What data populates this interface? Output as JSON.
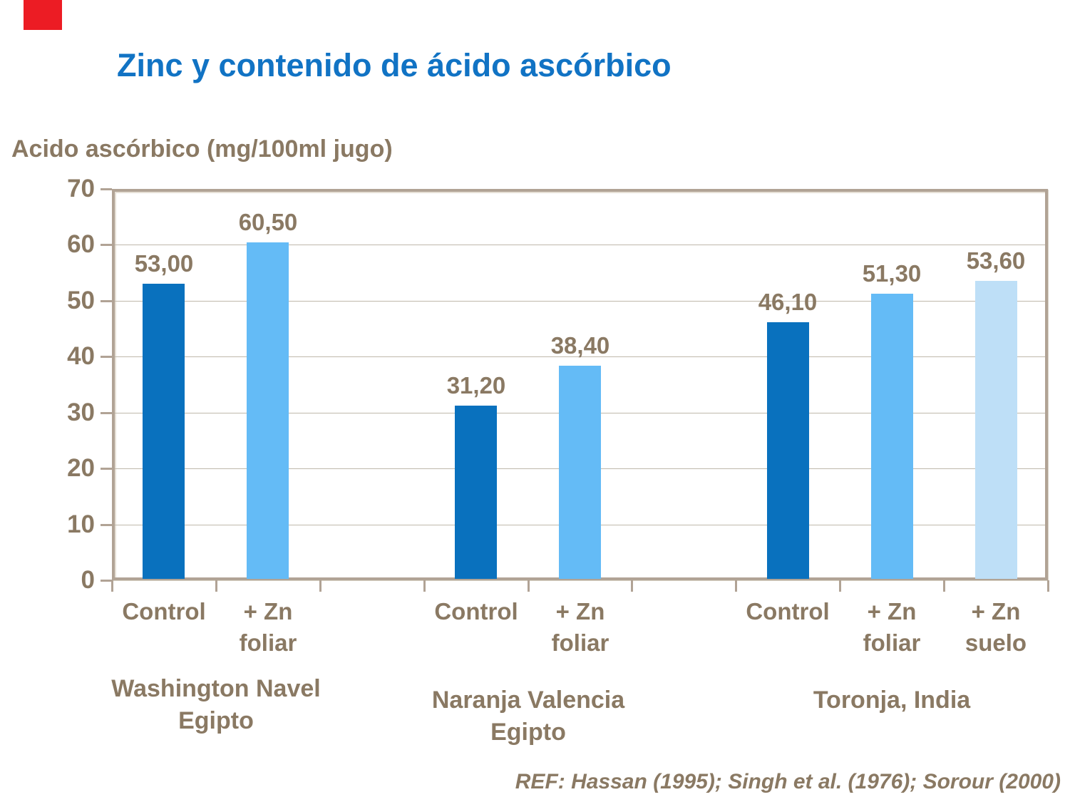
{
  "page": {
    "kind": "presentation-slide-bar-chart"
  },
  "colors": {
    "title_blue": "#1173C4",
    "text_brown": "#8A7963",
    "plot_border_tan": "#B1A395",
    "gridline": "#BFB8AB",
    "corner_red": "#EC1C24"
  },
  "chart_data": {
    "type": "bar",
    "title": "Zinc y contenido de ácido ascórbico",
    "ylabel": "Acido ascórbico (mg/100ml jugo)",
    "xlabel": "",
    "ylim": [
      0,
      70
    ],
    "yticks": [
      0,
      10,
      20,
      30,
      40,
      50,
      60,
      70
    ],
    "grid": "horizontal",
    "legend": false,
    "slot_count": 9,
    "series_colors": {
      "control": "#0971BE",
      "zn_foliar": "#64BBF6",
      "zn_suelo": "#BEDFF7"
    },
    "bars": [
      {
        "slot": 0,
        "group": "Washington Navel Egipto",
        "category": "Control",
        "category_lines": [
          "Control"
        ],
        "series": "control",
        "value": 53.0,
        "label": "53,00"
      },
      {
        "slot": 1,
        "group": "Washington Navel Egipto",
        "category": "+ Zn foliar",
        "category_lines": [
          "+ Zn",
          "foliar"
        ],
        "series": "zn_foliar",
        "value": 60.5,
        "label": "60,50"
      },
      {
        "slot": 3,
        "group": "Naranja Valencia Egipto",
        "category": "Control",
        "category_lines": [
          "Control"
        ],
        "series": "control",
        "value": 31.2,
        "label": "31,20"
      },
      {
        "slot": 4,
        "group": "Naranja Valencia Egipto",
        "category": "+ Zn foliar",
        "category_lines": [
          "+ Zn",
          "foliar"
        ],
        "series": "zn_foliar",
        "value": 38.4,
        "label": "38,40"
      },
      {
        "slot": 6,
        "group": "Toronja, India",
        "category": "Control",
        "category_lines": [
          "Control"
        ],
        "series": "control",
        "value": 46.1,
        "label": "46,10"
      },
      {
        "slot": 7,
        "group": "Toronja, India",
        "category": "+ Zn foliar",
        "category_lines": [
          "+ Zn",
          "foliar"
        ],
        "series": "zn_foliar",
        "value": 51.3,
        "label": "51,30"
      },
      {
        "slot": 8,
        "group": "Toronja, India",
        "category": "+ Zn suelo",
        "category_lines": [
          "+ Zn",
          "suelo"
        ],
        "series": "zn_suelo",
        "value": 53.6,
        "label": "53,60"
      }
    ],
    "groups": [
      {
        "lines": [
          "Washington Navel",
          "Egipto"
        ],
        "slots": [
          0,
          1
        ]
      },
      {
        "lines": [
          "Naranja Valencia",
          "Egipto"
        ],
        "slots": [
          3,
          4
        ]
      },
      {
        "lines": [
          "Toronja, India"
        ],
        "slots": [
          6,
          7,
          8
        ]
      }
    ],
    "footnote": "REF: Hassan (1995); Singh et al. (1976); Sorour (2000)"
  }
}
